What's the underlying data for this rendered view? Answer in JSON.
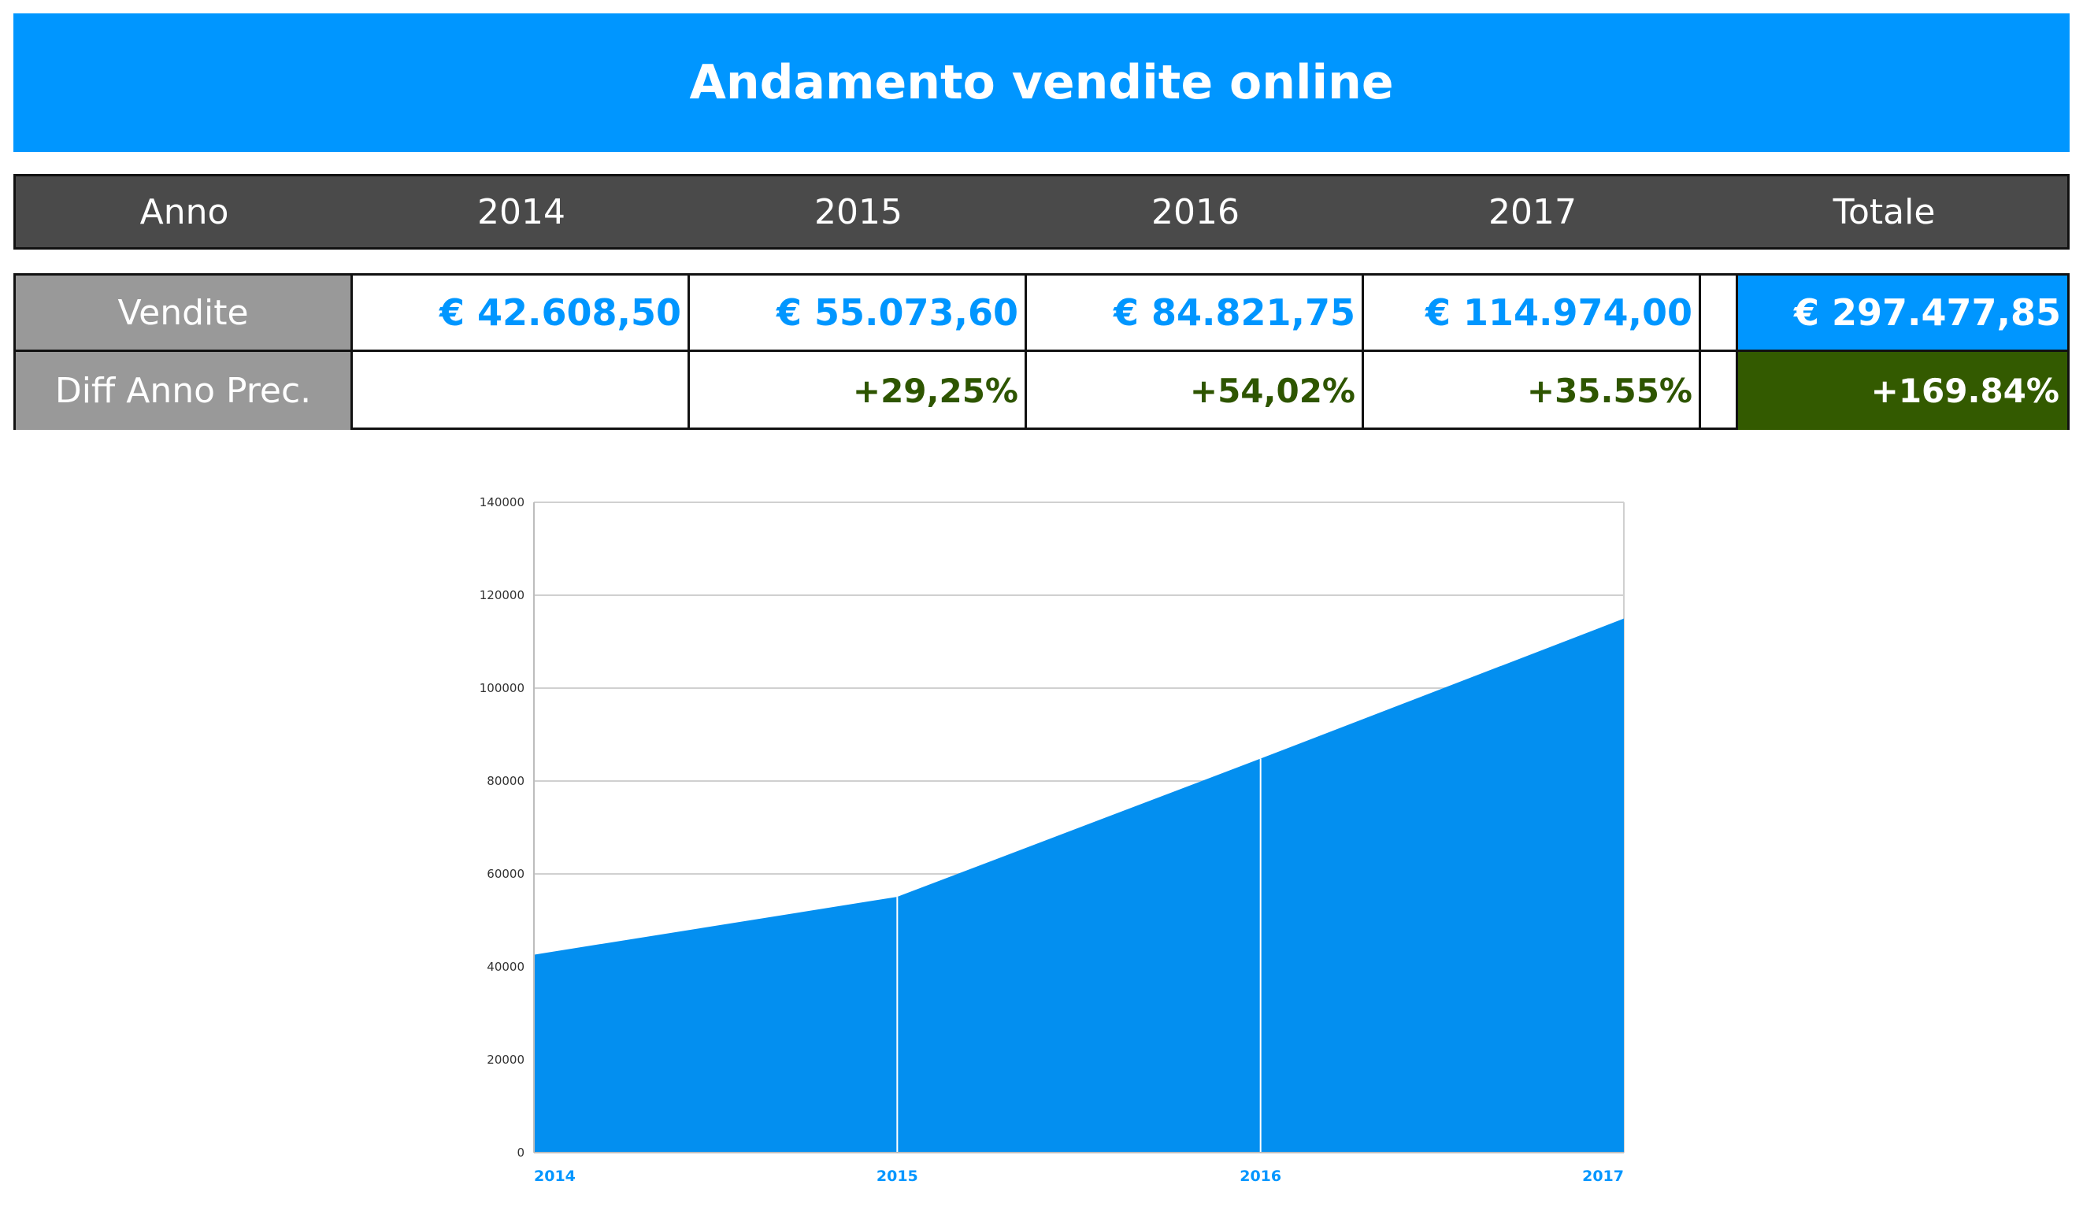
{
  "header": {
    "title": "Andamento vendite online"
  },
  "table": {
    "columns": [
      "Anno",
      "2014",
      "2015",
      "2016",
      "2017",
      "Totale"
    ],
    "rows": {
      "sales": {
        "label": "Vendite",
        "values": [
          "€ 42.608,50",
          "€ 55.073,60",
          "€ 84.821,75",
          "€ 114.974,00"
        ],
        "total": "€ 297.477,85"
      },
      "diff": {
        "label": "Diff Anno Prec.",
        "values": [
          "",
          "+29,25%",
          "+54,02%",
          "+35.55%"
        ],
        "total": "+169.84%"
      }
    }
  },
  "colors": {
    "accent": "#0096ff",
    "area": "#038ff0",
    "header_bg": "#4a4a4a",
    "label_bg": "#999999",
    "positive": "#2e5500",
    "total_diff_bg": "#335a00"
  },
  "chart_data": {
    "type": "area",
    "categories": [
      "2014",
      "2015",
      "2016",
      "2017"
    ],
    "values": [
      42608.5,
      55073.6,
      84821.75,
      114974.0
    ],
    "ylim": [
      0,
      140000
    ],
    "yticks": [
      "0",
      "20000",
      "40000",
      "60000",
      "80000",
      "100000",
      "120000",
      "140000"
    ],
    "grid": true
  }
}
